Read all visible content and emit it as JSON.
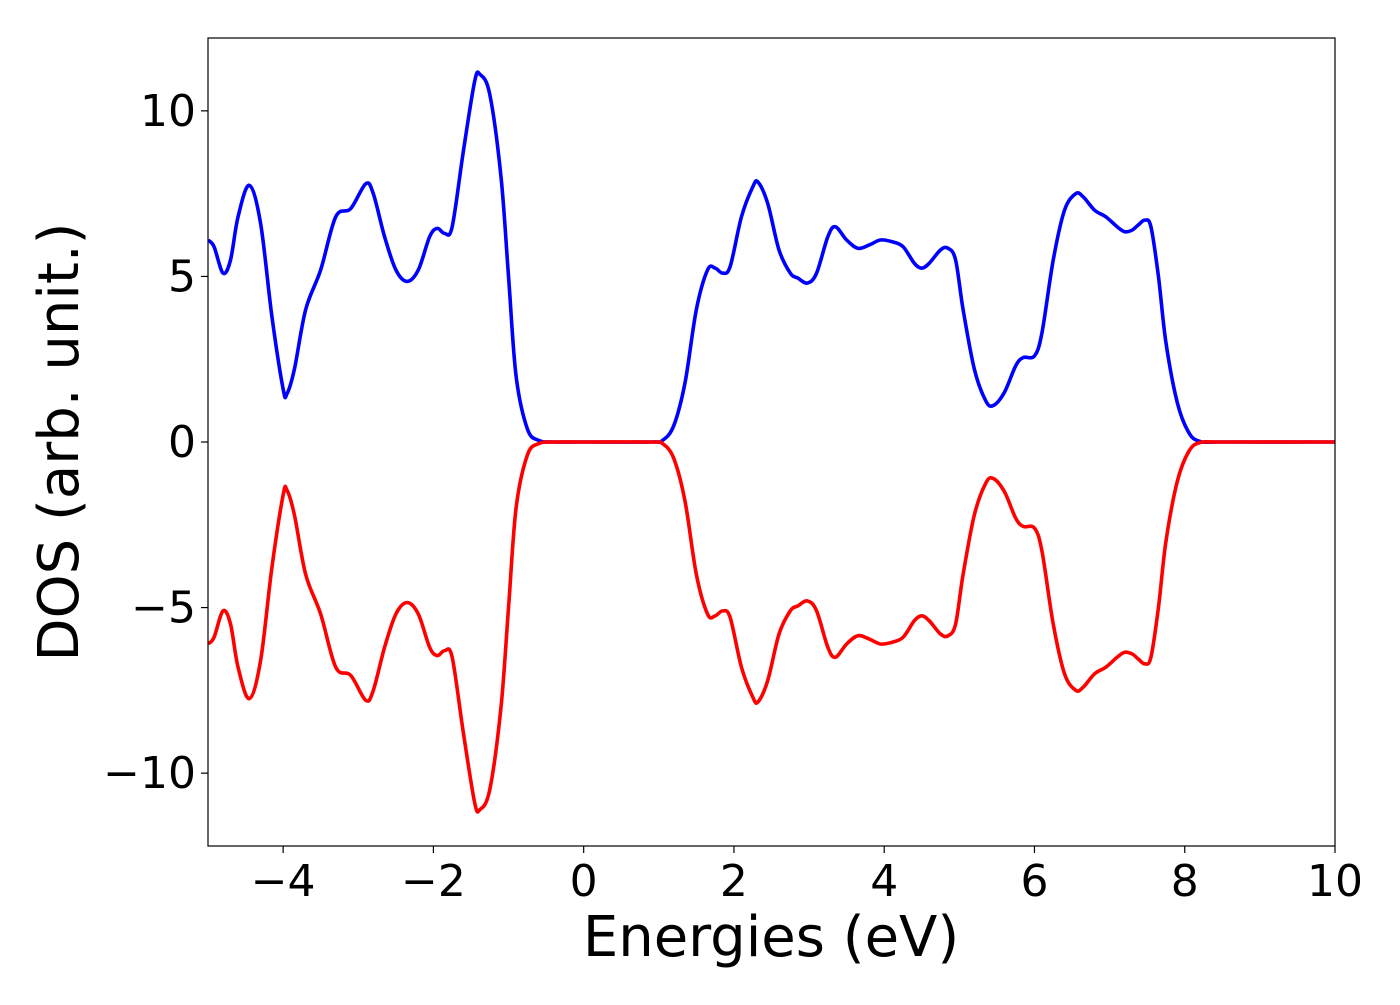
{
  "chart_data": {
    "type": "line",
    "title": "",
    "xlabel": "Energies (eV)",
    "ylabel": "DOS (arb. unit.)",
    "xlim": [
      -5,
      10
    ],
    "ylim": [
      -12.2,
      12.2
    ],
    "x_ticks": [
      -4,
      -2,
      0,
      2,
      4,
      6,
      8,
      10
    ],
    "x_tick_labels": [
      "−4",
      "−2",
      "0",
      "2",
      "4",
      "6",
      "8",
      "10"
    ],
    "y_ticks": [
      10,
      5,
      0,
      -5,
      -10
    ],
    "y_tick_labels": [
      "10",
      "5",
      "0",
      "−5",
      "−10"
    ],
    "grid": false,
    "legend": false,
    "series": [
      {
        "color": "#0000ff",
        "points": [
          [
            -5.0,
            6.1
          ],
          [
            -4.92,
            5.9
          ],
          [
            -4.8,
            5.1
          ],
          [
            -4.7,
            5.5
          ],
          [
            -4.6,
            6.8
          ],
          [
            -4.45,
            7.75
          ],
          [
            -4.3,
            6.6
          ],
          [
            -4.15,
            3.8
          ],
          [
            -4.0,
            1.6
          ],
          [
            -3.95,
            1.45
          ],
          [
            -3.85,
            2.2
          ],
          [
            -3.7,
            4.0
          ],
          [
            -3.5,
            5.2
          ],
          [
            -3.3,
            6.8
          ],
          [
            -3.1,
            7.05
          ],
          [
            -2.9,
            7.8
          ],
          [
            -2.8,
            7.5
          ],
          [
            -2.65,
            6.2
          ],
          [
            -2.5,
            5.2
          ],
          [
            -2.35,
            4.85
          ],
          [
            -2.2,
            5.2
          ],
          [
            -2.05,
            6.2
          ],
          [
            -1.95,
            6.45
          ],
          [
            -1.85,
            6.3
          ],
          [
            -1.75,
            6.5
          ],
          [
            -1.6,
            8.8
          ],
          [
            -1.45,
            10.9
          ],
          [
            -1.38,
            11.1
          ],
          [
            -1.25,
            10.5
          ],
          [
            -1.1,
            8.0
          ],
          [
            -1.0,
            5.0
          ],
          [
            -0.9,
            2.0
          ],
          [
            -0.75,
            0.4
          ],
          [
            -0.6,
            0.05
          ],
          [
            -0.4,
            0.0
          ],
          [
            0.0,
            0.0
          ],
          [
            0.9,
            0.0
          ],
          [
            1.05,
            0.05
          ],
          [
            1.2,
            0.5
          ],
          [
            1.35,
            1.8
          ],
          [
            1.5,
            4.0
          ],
          [
            1.65,
            5.2
          ],
          [
            1.75,
            5.25
          ],
          [
            1.85,
            5.1
          ],
          [
            1.95,
            5.3
          ],
          [
            2.1,
            6.8
          ],
          [
            2.25,
            7.7
          ],
          [
            2.32,
            7.85
          ],
          [
            2.45,
            7.2
          ],
          [
            2.6,
            5.8
          ],
          [
            2.75,
            5.1
          ],
          [
            2.85,
            4.95
          ],
          [
            2.98,
            4.8
          ],
          [
            3.1,
            5.1
          ],
          [
            3.25,
            6.2
          ],
          [
            3.35,
            6.5
          ],
          [
            3.5,
            6.1
          ],
          [
            3.65,
            5.85
          ],
          [
            3.8,
            5.95
          ],
          [
            3.95,
            6.1
          ],
          [
            4.1,
            6.05
          ],
          [
            4.25,
            5.9
          ],
          [
            4.4,
            5.4
          ],
          [
            4.5,
            5.25
          ],
          [
            4.6,
            5.4
          ],
          [
            4.75,
            5.8
          ],
          [
            4.85,
            5.85
          ],
          [
            4.95,
            5.5
          ],
          [
            5.05,
            4.0
          ],
          [
            5.2,
            2.2
          ],
          [
            5.35,
            1.25
          ],
          [
            5.45,
            1.1
          ],
          [
            5.6,
            1.5
          ],
          [
            5.75,
            2.3
          ],
          [
            5.85,
            2.55
          ],
          [
            6.0,
            2.6
          ],
          [
            6.1,
            3.3
          ],
          [
            6.25,
            5.5
          ],
          [
            6.4,
            7.0
          ],
          [
            6.55,
            7.5
          ],
          [
            6.65,
            7.4
          ],
          [
            6.8,
            7.0
          ],
          [
            6.95,
            6.8
          ],
          [
            7.1,
            6.5
          ],
          [
            7.2,
            6.35
          ],
          [
            7.3,
            6.4
          ],
          [
            7.38,
            6.55
          ],
          [
            7.47,
            6.7
          ],
          [
            7.55,
            6.5
          ],
          [
            7.65,
            5.0
          ],
          [
            7.75,
            3.0
          ],
          [
            7.9,
            1.2
          ],
          [
            8.05,
            0.3
          ],
          [
            8.2,
            0.02
          ],
          [
            8.5,
            0.0
          ],
          [
            10.0,
            0.0
          ]
        ]
      },
      {
        "color": "#ff0000",
        "points": [
          [
            -5.0,
            -6.1
          ],
          [
            -4.92,
            -5.9
          ],
          [
            -4.8,
            -5.1
          ],
          [
            -4.7,
            -5.5
          ],
          [
            -4.6,
            -6.8
          ],
          [
            -4.45,
            -7.75
          ],
          [
            -4.3,
            -6.6
          ],
          [
            -4.15,
            -3.8
          ],
          [
            -4.0,
            -1.6
          ],
          [
            -3.95,
            -1.45
          ],
          [
            -3.85,
            -2.2
          ],
          [
            -3.7,
            -4.0
          ],
          [
            -3.5,
            -5.2
          ],
          [
            -3.3,
            -6.8
          ],
          [
            -3.1,
            -7.05
          ],
          [
            -2.9,
            -7.8
          ],
          [
            -2.8,
            -7.5
          ],
          [
            -2.65,
            -6.2
          ],
          [
            -2.5,
            -5.2
          ],
          [
            -2.35,
            -4.85
          ],
          [
            -2.2,
            -5.2
          ],
          [
            -2.05,
            -6.2
          ],
          [
            -1.95,
            -6.45
          ],
          [
            -1.85,
            -6.3
          ],
          [
            -1.75,
            -6.5
          ],
          [
            -1.6,
            -8.8
          ],
          [
            -1.45,
            -10.9
          ],
          [
            -1.38,
            -11.1
          ],
          [
            -1.25,
            -10.5
          ],
          [
            -1.1,
            -8.0
          ],
          [
            -1.0,
            -5.0
          ],
          [
            -0.9,
            -2.0
          ],
          [
            -0.75,
            -0.4
          ],
          [
            -0.6,
            -0.05
          ],
          [
            -0.4,
            0.0
          ],
          [
            0.0,
            0.0
          ],
          [
            0.9,
            0.0
          ],
          [
            1.05,
            -0.05
          ],
          [
            1.2,
            -0.5
          ],
          [
            1.35,
            -1.8
          ],
          [
            1.5,
            -4.0
          ],
          [
            1.65,
            -5.2
          ],
          [
            1.75,
            -5.25
          ],
          [
            1.85,
            -5.1
          ],
          [
            1.95,
            -5.3
          ],
          [
            2.1,
            -6.8
          ],
          [
            2.25,
            -7.7
          ],
          [
            2.32,
            -7.85
          ],
          [
            2.45,
            -7.2
          ],
          [
            2.6,
            -5.8
          ],
          [
            2.75,
            -5.1
          ],
          [
            2.85,
            -4.95
          ],
          [
            2.98,
            -4.8
          ],
          [
            3.1,
            -5.1
          ],
          [
            3.25,
            -6.2
          ],
          [
            3.35,
            -6.5
          ],
          [
            3.5,
            -6.1
          ],
          [
            3.65,
            -5.85
          ],
          [
            3.8,
            -5.95
          ],
          [
            3.95,
            -6.1
          ],
          [
            4.1,
            -6.05
          ],
          [
            4.25,
            -5.9
          ],
          [
            4.4,
            -5.4
          ],
          [
            4.5,
            -5.25
          ],
          [
            4.6,
            -5.4
          ],
          [
            4.75,
            -5.8
          ],
          [
            4.85,
            -5.85
          ],
          [
            4.95,
            -5.5
          ],
          [
            5.05,
            -4.0
          ],
          [
            5.2,
            -2.2
          ],
          [
            5.35,
            -1.25
          ],
          [
            5.45,
            -1.1
          ],
          [
            5.6,
            -1.5
          ],
          [
            5.75,
            -2.3
          ],
          [
            5.85,
            -2.55
          ],
          [
            6.0,
            -2.6
          ],
          [
            6.1,
            -3.3
          ],
          [
            6.25,
            -5.5
          ],
          [
            6.4,
            -7.0
          ],
          [
            6.55,
            -7.5
          ],
          [
            6.65,
            -7.4
          ],
          [
            6.8,
            -7.0
          ],
          [
            6.95,
            -6.8
          ],
          [
            7.1,
            -6.5
          ],
          [
            7.2,
            -6.35
          ],
          [
            7.3,
            -6.4
          ],
          [
            7.38,
            -6.55
          ],
          [
            7.47,
            -6.7
          ],
          [
            7.55,
            -6.5
          ],
          [
            7.65,
            -5.0
          ],
          [
            7.75,
            -3.0
          ],
          [
            7.9,
            -1.2
          ],
          [
            8.05,
            -0.3
          ],
          [
            8.2,
            -0.02
          ],
          [
            8.5,
            0.0
          ],
          [
            10.0,
            0.0
          ]
        ]
      }
    ]
  }
}
